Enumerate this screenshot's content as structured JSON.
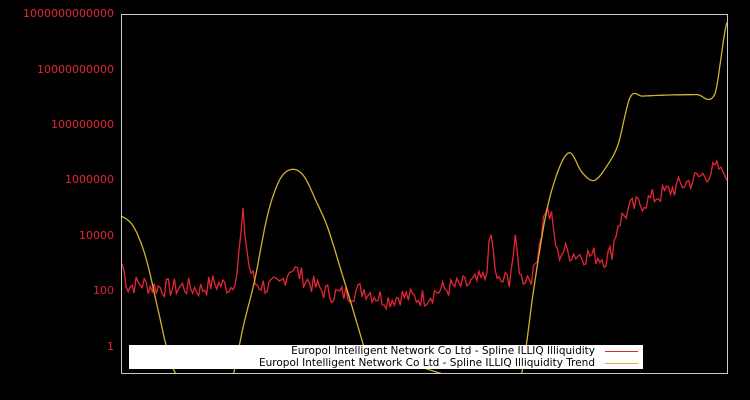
{
  "chart_data": {
    "type": "line",
    "title": "",
    "xlabel": "",
    "ylabel": "",
    "yscale": "log",
    "ylim": [
      0.1,
      1000000000000
    ],
    "ytick_labels": [
      "1000000000000",
      "10000000000",
      "100000000",
      "1000000",
      "10000",
      "100",
      "1"
    ],
    "ytick_values": [
      1000000000000,
      10000000000,
      100000000,
      1000000,
      10000,
      100,
      1
    ],
    "grid": false,
    "legend_position": "lower-center",
    "background": "#000000",
    "frame_color": "#c8c8c8",
    "tick_label_color": "#e32636",
    "series": [
      {
        "name": "Europol Intelligent Network Co Ltd - Spline ILLIQ Illiquidity",
        "color": "#e32636",
        "x_fraction": [
          0.0,
          0.01,
          0.03,
          0.05,
          0.08,
          0.1,
          0.13,
          0.15,
          0.18,
          0.19,
          0.2,
          0.21,
          0.22,
          0.24,
          0.26,
          0.28,
          0.3,
          0.32,
          0.34,
          0.36,
          0.38,
          0.4,
          0.42,
          0.44,
          0.46,
          0.48,
          0.5,
          0.52,
          0.55,
          0.58,
          0.6,
          0.61,
          0.62,
          0.64,
          0.65,
          0.66,
          0.68,
          0.7,
          0.71,
          0.72,
          0.73,
          0.74,
          0.76,
          0.78,
          0.8,
          0.81,
          0.82,
          0.84,
          0.99,
          1.0
        ],
        "values": [
          1000,
          150,
          200,
          150,
          130,
          150,
          120,
          200,
          150,
          500,
          50000,
          800,
          200,
          150,
          160,
          800,
          300,
          150,
          90,
          80,
          90,
          120,
          70,
          50,
          70,
          60,
          60,
          100,
          150,
          200,
          300,
          10000,
          200,
          300,
          5000,
          300,
          400,
          100000,
          40000,
          2000,
          3000,
          2500,
          2000,
          2000,
          1500,
          3000,
          30000,
          100000,
          3000000,
          1000000
        ]
      },
      {
        "name": "Europol Intelligent Network Co Ltd - Spline ILLIQ Illiquidity Trend",
        "color": "#d4b030",
        "x_fraction": [
          0.0,
          0.02,
          0.04,
          0.06,
          0.08,
          0.1,
          0.12,
          0.15,
          0.18,
          0.2,
          0.22,
          0.24,
          0.26,
          0.28,
          0.3,
          0.32,
          0.34,
          0.36,
          0.38,
          0.4,
          0.6,
          0.66,
          0.68,
          0.7,
          0.72,
          0.74,
          0.76,
          0.78,
          0.8,
          0.82,
          0.84,
          0.86,
          0.9,
          0.95,
          0.98,
          1.0
        ],
        "values": [
          50000,
          20000,
          1500,
          20,
          0.3,
          0.05,
          0.02,
          0.02,
          0.05,
          5,
          300,
          50000,
          1000000,
          2500000,
          1500000,
          200000,
          20000,
          800,
          30,
          1,
          0.05,
          0.1,
          100,
          50000,
          2000000,
          10000000,
          2000000,
          1000000,
          3000000,
          20000000,
          1000000000,
          1100000000,
          1200000000,
          1250000000,
          1300000000,
          500000000000
        ]
      }
    ]
  },
  "legend": {
    "items": [
      {
        "label": "Europol Intelligent Network Co Ltd - Spline ILLIQ Illiquidity",
        "color": "#e32636"
      },
      {
        "label": "Europol Intelligent Network Co Ltd - Spline ILLIQ Illiquidity Trend",
        "color": "#d4b030"
      }
    ]
  }
}
